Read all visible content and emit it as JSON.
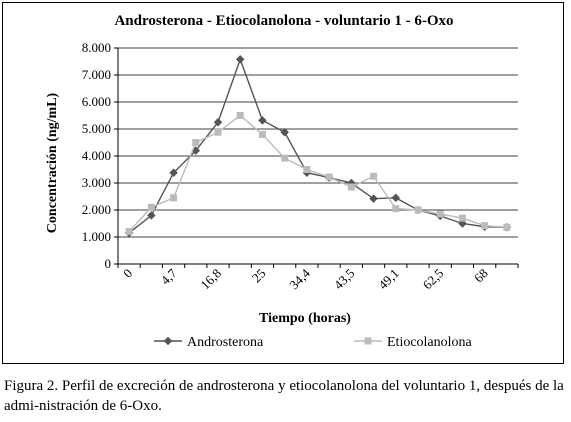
{
  "chart_data": {
    "type": "line",
    "title": "Androsterona - Etiocolanolona  -  voluntario 1 -  6-Oxo",
    "xlabel": "Tiempo (horas)",
    "ylabel": "Concentración (ng/mL)",
    "ylim": [
      0,
      8000
    ],
    "yticks": [
      0,
      1000,
      2000,
      3000,
      4000,
      5000,
      6000,
      7000,
      8000
    ],
    "ytick_labels": [
      "0",
      "1.000",
      "2.000",
      "3.000",
      "4.000",
      "5.000",
      "6.000",
      "7.000",
      "8.000"
    ],
    "xtick_labels": [
      "0",
      "4,7",
      "16,8",
      "25",
      "34,4",
      "43,5",
      "49,1",
      "62,5",
      "68"
    ],
    "grid": true,
    "legend": "bottom",
    "series": [
      {
        "name": "Androsterona",
        "color": "#555555",
        "marker": "diamond",
        "values": [
          1150,
          1800,
          3380,
          4200,
          5250,
          7580,
          5320,
          4880,
          3380,
          3200,
          3000,
          2420,
          2450,
          2000,
          1780,
          1500,
          1380,
          1360
        ]
      },
      {
        "name": "Etiocolanolona",
        "color": "#bbbbbb",
        "marker": "square",
        "values": [
          1200,
          2100,
          2450,
          4500,
          4880,
          5500,
          4800,
          3920,
          3500,
          3220,
          2850,
          3250,
          2050,
          2000,
          1850,
          1700,
          1420,
          1360
        ]
      }
    ]
  },
  "caption": {
    "text": "Figura 2. Perfil de excreción de androsterona y etiocolanolona del voluntario 1, después de la admi-nistración de 6-Oxo."
  }
}
